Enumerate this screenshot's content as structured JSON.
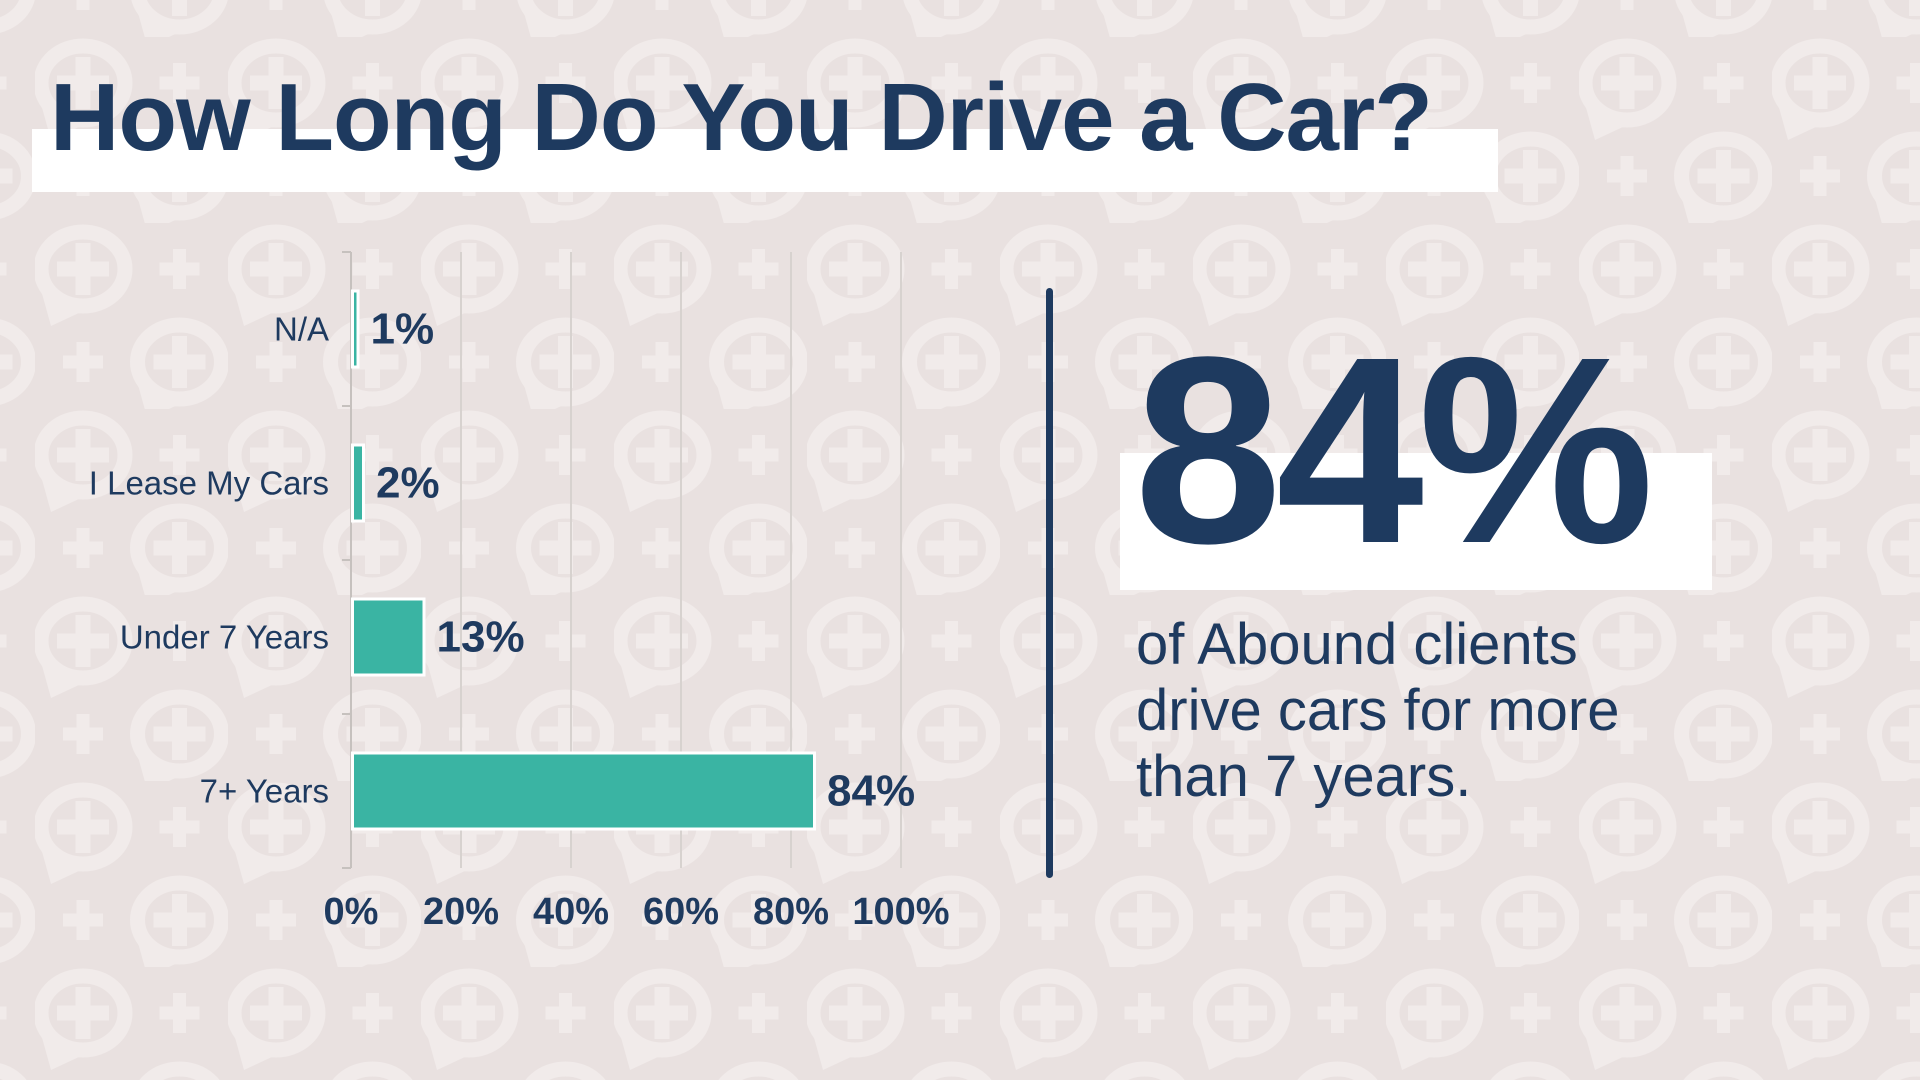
{
  "page": {
    "title": "How Long Do You Drive a Car?"
  },
  "colors": {
    "background": "#E9E1E0",
    "pattern": "#F1EBEA",
    "navy": "#1E3A5F",
    "teal": "#3AB4A3",
    "white": "#FFFFFF",
    "gridline": "#D7D2CF"
  },
  "chart_data": {
    "type": "bar",
    "orientation": "horizontal",
    "title": "",
    "xlabel": "",
    "ylabel": "",
    "categories": [
      "N/A",
      "I Lease My Cars",
      "Under 7 Years",
      "7+ Years"
    ],
    "values": [
      1,
      2,
      13,
      84
    ],
    "value_labels": [
      "1%",
      "2%",
      "13%",
      "84%"
    ],
    "x_ticks": [
      "0%",
      "20%",
      "40%",
      "60%",
      "80%",
      "100%"
    ],
    "x_tick_values": [
      0,
      20,
      40,
      60,
      80,
      100
    ],
    "xlim": [
      0,
      100
    ],
    "grid": true,
    "legend": "none",
    "bar_color": "#3AB4A3",
    "bar_border_color": "#FFFFFF"
  },
  "callout": {
    "stat": "84%",
    "description_lines": [
      "of Abound clients",
      "drive cars for more",
      "than 7 years."
    ]
  },
  "icons": {
    "pattern_motif": "speech-bubble-plus-icon"
  }
}
